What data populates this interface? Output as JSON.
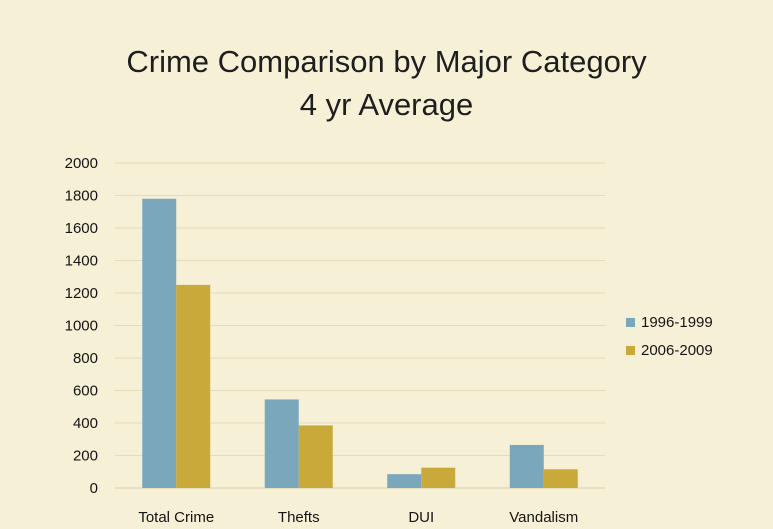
{
  "chart_data": {
    "type": "bar",
    "title": "Crime Comparison by Major Category",
    "subtitle": "4 yr Average",
    "xlabel": "",
    "ylabel": "",
    "ylim": [
      0,
      2000
    ],
    "yticks": [
      0,
      200,
      400,
      600,
      800,
      1000,
      1200,
      1400,
      1600,
      1800,
      2000
    ],
    "grid": true,
    "legend": "right",
    "categories": [
      "Total Crime",
      "Thefts",
      "DUI",
      "Vandalism"
    ],
    "series": [
      {
        "name": "1996-1999",
        "color": "#7aa7bb",
        "values": [
          1780,
          545,
          85,
          265
        ]
      },
      {
        "name": "2006-2009",
        "color": "#c9a93a",
        "values": [
          1250,
          385,
          125,
          115
        ]
      }
    ]
  }
}
